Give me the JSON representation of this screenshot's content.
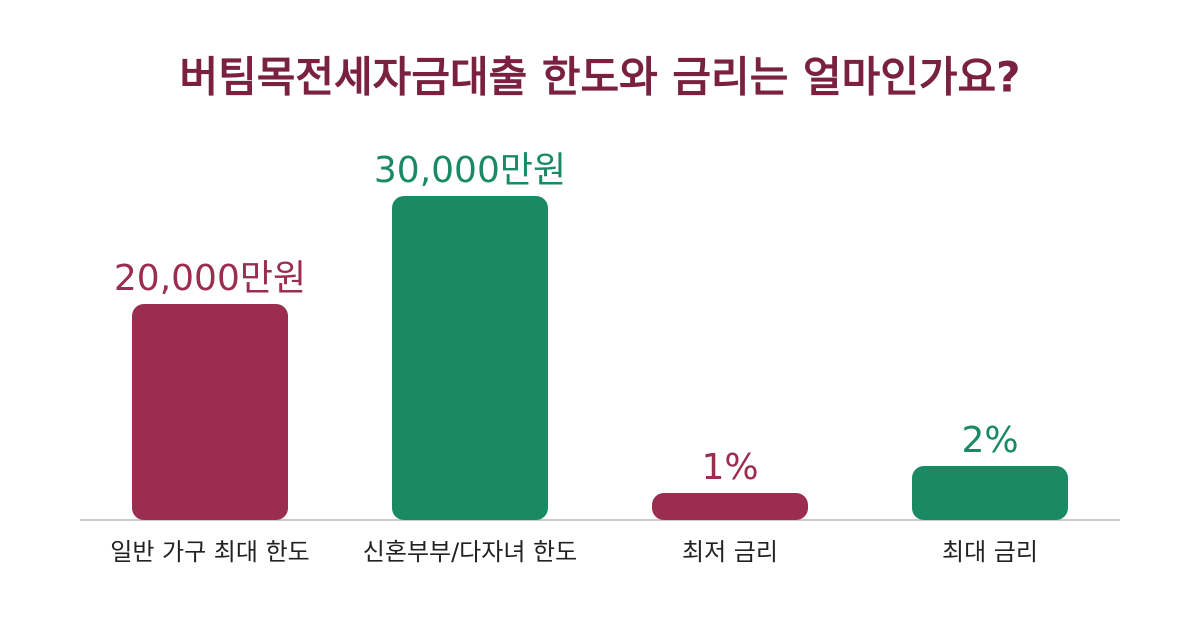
{
  "title": "버팀목전세자금대출 한도와 금리는 얼마인가요?",
  "chart_data": [
    {
      "type": "bar",
      "categories": [
        "일반 가구 최대 한도",
        "신혼부부/다자녀 한도"
      ],
      "values": [
        20000,
        30000
      ],
      "value_labels": [
        "20,000만원",
        "30,000만원"
      ],
      "colors": [
        "#9b2d4e",
        "#1a8a62"
      ]
    },
    {
      "type": "bar",
      "categories": [
        "최저 금리",
        "최대 금리"
      ],
      "values": [
        1,
        2
      ],
      "value_labels": [
        "1%",
        "2%"
      ],
      "colors": [
        "#9b2d4e",
        "#1a8a62"
      ]
    }
  ]
}
